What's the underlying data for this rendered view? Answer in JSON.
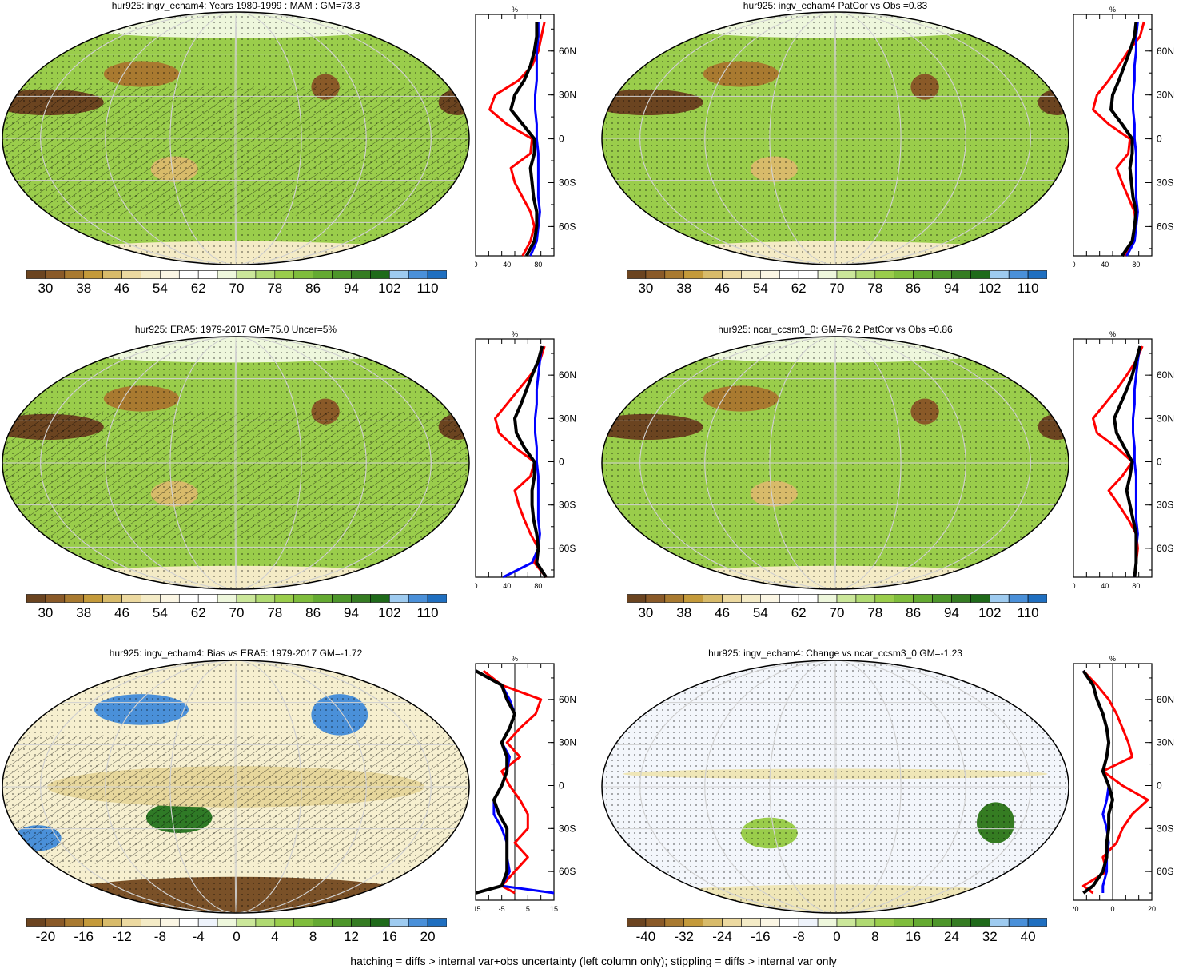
{
  "footer": "hatching = diffs > internal var+obs uncertainty (left column only); stippling = diffs > internal var only",
  "colors": {
    "brown_dark": "#6b4420",
    "green_main": "#9acd4b",
    "green_dark": "#2f7a26",
    "blue": "#4a90d9",
    "red_line": "#ff0000",
    "blue_line": "#0000ff",
    "black_line": "#000000",
    "missing": "#d9d9d9"
  },
  "panels": [
    {
      "title": "hur925: ingv_echam4: Years 1980-1999 : MAM : GM=73.3",
      "colorbar_labels": [
        "30",
        "38",
        "46",
        "54",
        "62",
        "70",
        "78",
        "86",
        "94",
        "102",
        "110"
      ],
      "profile": {
        "unit": "%",
        "lat_labels": [
          "60N",
          "30N",
          "0",
          "30S",
          "60S"
        ],
        "x_ticks": [
          "0",
          "40",
          "80"
        ]
      }
    },
    {
      "title": "hur925: ingv_echam4 PatCor vs Obs =0.83",
      "colorbar_labels": [
        "30",
        "38",
        "46",
        "54",
        "62",
        "70",
        "78",
        "86",
        "94",
        "102",
        "110"
      ],
      "profile": {
        "unit": "%",
        "lat_labels": [
          "60N",
          "30N",
          "0",
          "30S",
          "60S"
        ],
        "x_ticks": [
          "0",
          "40",
          "80"
        ]
      }
    },
    {
      "title": "hur925: ERA5: 1979-2017 GM=75.0 Uncer=5%",
      "colorbar_labels": [
        "30",
        "38",
        "46",
        "54",
        "62",
        "70",
        "78",
        "86",
        "94",
        "102",
        "110"
      ],
      "profile": {
        "unit": "%",
        "lat_labels": [
          "60N",
          "30N",
          "0",
          "30S",
          "60S"
        ],
        "x_ticks": [
          "0",
          "40",
          "80"
        ]
      }
    },
    {
      "title": "hur925: ncar_ccsm3_0: GM=76.2 PatCor vs Obs =0.86",
      "colorbar_labels": [
        "30",
        "38",
        "46",
        "54",
        "62",
        "70",
        "78",
        "86",
        "94",
        "102",
        "110"
      ],
      "profile": {
        "unit": "%",
        "lat_labels": [
          "60N",
          "30N",
          "0",
          "30S",
          "60S"
        ],
        "x_ticks": [
          "0",
          "40",
          "80"
        ]
      }
    },
    {
      "title": "hur925: ingv_echam4: Bias vs ERA5: 1979-2017 GM=-1.72",
      "colorbar_labels": [
        "-20",
        "-16",
        "-12",
        "-8",
        "-4",
        "0",
        "4",
        "8",
        "12",
        "16",
        "20"
      ],
      "profile": {
        "unit": "%",
        "lat_labels": [
          "60N",
          "30N",
          "0",
          "30S",
          "60S"
        ],
        "x_ticks": [
          "-15",
          "-5",
          "5",
          "15"
        ]
      }
    },
    {
      "title": "hur925: ingv_echam4: Change vs ncar_ccsm3_0 GM=-1.23",
      "colorbar_labels": [
        "-40",
        "-32",
        "-24",
        "-16",
        "-8",
        "0",
        "8",
        "16",
        "24",
        "32",
        "40"
      ],
      "profile": {
        "unit": "%",
        "lat_labels": [
          "60N",
          "30N",
          "0",
          "30S",
          "60S"
        ],
        "x_ticks": [
          "-20",
          "0",
          "20"
        ]
      }
    }
  ],
  "chart_data": [
    {
      "type": "line",
      "title": "hur925: ingv_echam4: Years 1980-1999 : MAM : GM=73.3",
      "xlabel": "%",
      "ylabel": "",
      "xlim": [
        0,
        100
      ],
      "ylim": [
        -80,
        85
      ],
      "y": [
        80,
        70,
        60,
        50,
        40,
        30,
        20,
        10,
        0,
        -10,
        -20,
        -30,
        -40,
        -50,
        -60,
        -70,
        -80
      ],
      "series": [
        {
          "values": [
            88,
            84,
            80,
            72,
            55,
            25,
            18,
            40,
            72,
            70,
            45,
            50,
            60,
            70,
            75,
            70,
            60
          ]
        },
        {
          "values": [
            80,
            80,
            78,
            78,
            78,
            76,
            76,
            78,
            78,
            80,
            80,
            80,
            80,
            82,
            80,
            78,
            70
          ]
        },
        {
          "values": [
            78,
            78,
            75,
            70,
            62,
            50,
            45,
            60,
            75,
            75,
            70,
            72,
            74,
            78,
            78,
            75,
            65
          ]
        }
      ]
    },
    {
      "type": "line",
      "title": "hur925: ingv_echam4 PatCor vs Obs =0.83",
      "xlabel": "%",
      "ylabel": "",
      "xlim": [
        0,
        100
      ],
      "ylim": [
        -80,
        85
      ],
      "y": [
        80,
        70,
        60,
        50,
        40,
        30,
        20,
        10,
        0,
        -10,
        -20,
        -30,
        -40,
        -50,
        -60,
        -70,
        -80
      ],
      "series": [
        {
          "values": [
            90,
            85,
            70,
            58,
            45,
            30,
            25,
            45,
            72,
            70,
            55,
            62,
            70,
            78,
            80,
            75,
            65
          ]
        },
        {
          "values": [
            82,
            80,
            80,
            78,
            78,
            76,
            76,
            78,
            78,
            80,
            80,
            80,
            80,
            82,
            80,
            78,
            68
          ]
        },
        {
          "values": [
            80,
            78,
            72,
            65,
            58,
            50,
            48,
            62,
            75,
            75,
            72,
            74,
            76,
            80,
            78,
            75,
            62
          ]
        }
      ]
    },
    {
      "type": "line",
      "title": "hur925: ERA5: 1979-2017 GM=75.0 Uncer=5%",
      "xlabel": "%",
      "ylabel": "",
      "xlim": [
        0,
        100
      ],
      "ylim": [
        -80,
        85
      ],
      "y": [
        80,
        70,
        60,
        50,
        40,
        30,
        20,
        10,
        0,
        -10,
        -20,
        -30,
        -40,
        -50,
        -60,
        -70,
        -80
      ],
      "series": [
        {
          "values": [
            88,
            82,
            70,
            55,
            40,
            25,
            30,
            50,
            75,
            70,
            50,
            55,
            62,
            70,
            80,
            75,
            90
          ]
        },
        {
          "values": [
            85,
            82,
            80,
            78,
            78,
            76,
            76,
            78,
            78,
            80,
            80,
            80,
            80,
            82,
            80,
            72,
            35
          ]
        },
        {
          "values": [
            85,
            80,
            72,
            65,
            58,
            50,
            52,
            62,
            75,
            75,
            72,
            72,
            74,
            78,
            80,
            78,
            90
          ]
        }
      ]
    },
    {
      "type": "line",
      "title": "hur925: ncar_ccsm3_0: GM=76.2 PatCor vs Obs =0.86",
      "xlabel": "%",
      "ylabel": "",
      "xlim": [
        0,
        100
      ],
      "ylim": [
        -80,
        85
      ],
      "y": [
        80,
        70,
        60,
        50,
        40,
        30,
        20,
        10,
        0,
        -10,
        -20,
        -30,
        -40,
        -50,
        -60,
        -70,
        -80
      ],
      "series": [
        {
          "values": [
            88,
            80,
            68,
            55,
            40,
            25,
            30,
            55,
            75,
            62,
            45,
            58,
            70,
            80,
            82,
            80,
            78
          ]
        },
        {
          "values": [
            85,
            82,
            80,
            78,
            78,
            76,
            76,
            78,
            78,
            80,
            80,
            80,
            80,
            82,
            80,
            80,
            78
          ]
        },
        {
          "values": [
            85,
            80,
            75,
            68,
            60,
            52,
            55,
            65,
            75,
            72,
            68,
            72,
            76,
            80,
            80,
            80,
            78
          ]
        }
      ]
    },
    {
      "type": "line",
      "title": "hur925: ingv_echam4: Bias vs ERA5: 1979-2017 GM=-1.72",
      "xlabel": "%",
      "ylabel": "",
      "xlim": [
        -15,
        15
      ],
      "ylim": [
        -80,
        85
      ],
      "y": [
        80,
        70,
        60,
        50,
        40,
        30,
        20,
        10,
        0,
        -10,
        -20,
        -30,
        -40,
        -50,
        -60,
        -70,
        -75
      ],
      "series": [
        {
          "values": [
            -12,
            -5,
            10,
            8,
            2,
            -3,
            2,
            -5,
            -2,
            2,
            5,
            5,
            0,
            5,
            0,
            -5,
            0
          ]
        },
        {
          "values": [
            -15,
            -5,
            -2,
            0,
            -2,
            -5,
            -2,
            -3,
            -5,
            -8,
            -8,
            -5,
            -3,
            -3,
            -2,
            -5,
            15
          ]
        },
        {
          "values": [
            -15,
            -5,
            -3,
            0,
            -2,
            -5,
            -3,
            -3,
            -5,
            -8,
            -6,
            -3,
            -3,
            -3,
            -3,
            -5,
            -15
          ]
        }
      ]
    },
    {
      "type": "line",
      "title": "hur925: ingv_echam4: Change vs ncar_ccsm3_0 GM=-1.23",
      "xlabel": "%",
      "ylabel": "",
      "xlim": [
        -20,
        20
      ],
      "ylim": [
        -80,
        85
      ],
      "y": [
        80,
        70,
        60,
        50,
        40,
        30,
        20,
        10,
        0,
        -10,
        -20,
        -30,
        -40,
        -50,
        -60,
        -70,
        -75
      ],
      "series": [
        {
          "values": [
            -15,
            -8,
            -2,
            2,
            5,
            8,
            10,
            -5,
            5,
            18,
            10,
            5,
            2,
            -5,
            -3,
            -15,
            -10
          ]
        },
        {
          "values": [
            -15,
            -10,
            -8,
            -5,
            -3,
            -2,
            -3,
            -5,
            -2,
            -3,
            -5,
            -3,
            -2,
            -3,
            -3,
            -5,
            -5
          ]
        },
        {
          "values": [
            -15,
            -10,
            -8,
            -5,
            -3,
            -2,
            -3,
            -5,
            -2,
            0,
            -2,
            -2,
            -3,
            -3,
            -5,
            -10,
            -15
          ]
        }
      ]
    }
  ]
}
